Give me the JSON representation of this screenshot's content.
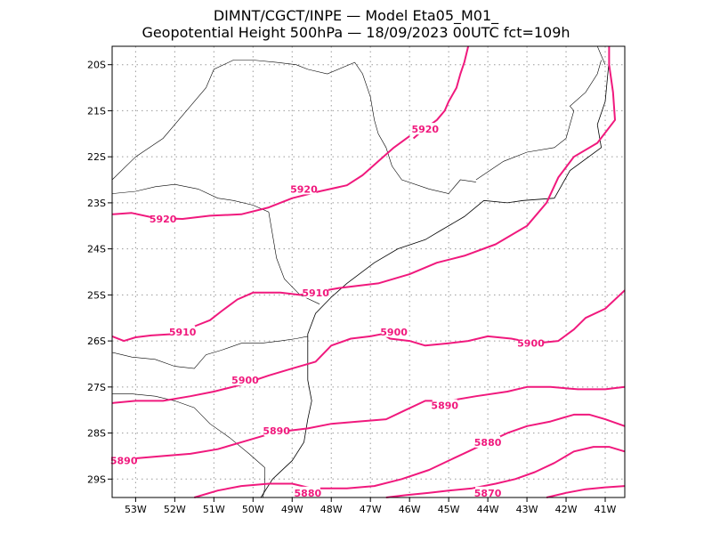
{
  "header": {
    "line1": "DIMNT/CGCT/INPE —  Model Eta05_M01_",
    "line2": "Geopotential Height 500hPa —  18/09/2023 00UTC fct=109h"
  },
  "map": {
    "lon_range": [
      -53.6,
      -40.5
    ],
    "lat_range": [
      -29.4,
      -19.6
    ],
    "lat_ticks": [
      {
        "value": -20,
        "label": "20S"
      },
      {
        "value": -21,
        "label": "21S"
      },
      {
        "value": -22,
        "label": "22S"
      },
      {
        "value": -23,
        "label": "23S"
      },
      {
        "value": -24,
        "label": "24S"
      },
      {
        "value": -25,
        "label": "25S"
      },
      {
        "value": -26,
        "label": "26S"
      },
      {
        "value": -27,
        "label": "27S"
      },
      {
        "value": -28,
        "label": "28S"
      },
      {
        "value": -29,
        "label": "29S"
      }
    ],
    "lon_ticks": [
      {
        "value": -53,
        "label": "53W"
      },
      {
        "value": -52,
        "label": "52W"
      },
      {
        "value": -51,
        "label": "51W"
      },
      {
        "value": -50,
        "label": "50W"
      },
      {
        "value": -49,
        "label": "49W"
      },
      {
        "value": -48,
        "label": "48W"
      },
      {
        "value": -47,
        "label": "47W"
      },
      {
        "value": -46,
        "label": "46W"
      },
      {
        "value": -45,
        "label": "45W"
      },
      {
        "value": -44,
        "label": "44W"
      },
      {
        "value": -43,
        "label": "43W"
      },
      {
        "value": -42,
        "label": "42W"
      },
      {
        "value": -41,
        "label": "41W"
      }
    ],
    "contour_color": "#f0197d",
    "contour_labels": [
      {
        "text": "5920",
        "lon": -45.6,
        "lat": -21.4
      },
      {
        "text": "5920",
        "lon": -48.7,
        "lat": -22.7
      },
      {
        "text": "5920",
        "lon": -52.3,
        "lat": -23.35
      },
      {
        "text": "5910",
        "lon": -48.4,
        "lat": -24.95
      },
      {
        "text": "5910",
        "lon": -51.8,
        "lat": -25.8
      },
      {
        "text": "5900",
        "lon": -46.4,
        "lat": -25.8
      },
      {
        "text": "5900",
        "lon": -42.9,
        "lat": -26.05
      },
      {
        "text": "5900",
        "lon": -50.2,
        "lat": -26.85
      },
      {
        "text": "5890",
        "lon": -45.1,
        "lat": -27.4
      },
      {
        "text": "5890",
        "lon": -49.4,
        "lat": -27.95
      },
      {
        "text": "5890",
        "lon": -53.3,
        "lat": -28.6
      },
      {
        "text": "5880",
        "lon": -44.0,
        "lat": -28.2
      },
      {
        "text": "5880",
        "lon": -48.6,
        "lat": -29.3
      },
      {
        "text": "5870",
        "lon": -44.0,
        "lat": -29.3
      }
    ],
    "contours": [
      [
        [
          -45.9,
          -21.6
        ],
        [
          -45.7,
          -21.45
        ],
        [
          -45.3,
          -21.2
        ],
        [
          -45.1,
          -21.0
        ],
        [
          -45.0,
          -20.8
        ],
        [
          -44.8,
          -20.5
        ],
        [
          -44.7,
          -20.2
        ],
        [
          -44.6,
          -19.95
        ],
        [
          -44.5,
          -19.6
        ]
      ],
      [
        [
          -53.6,
          -23.25
        ],
        [
          -53.1,
          -23.22
        ],
        [
          -52.5,
          -23.33
        ],
        [
          -51.8,
          -23.35
        ],
        [
          -51.1,
          -23.28
        ],
        [
          -50.3,
          -23.25
        ],
        [
          -49.6,
          -23.1
        ],
        [
          -49.0,
          -22.9
        ],
        [
          -48.3,
          -22.75
        ],
        [
          -47.6,
          -22.62
        ],
        [
          -47.2,
          -22.4
        ],
        [
          -46.8,
          -22.1
        ],
        [
          -46.4,
          -21.8
        ],
        [
          -46.0,
          -21.55
        ]
      ],
      [
        [
          -53.6,
          -25.9
        ],
        [
          -53.3,
          -26.0
        ],
        [
          -53.0,
          -25.92
        ],
        [
          -52.6,
          -25.88
        ],
        [
          -52.0,
          -25.85
        ],
        [
          -51.4,
          -25.65
        ],
        [
          -51.1,
          -25.55
        ],
        [
          -50.8,
          -25.35
        ],
        [
          -50.4,
          -25.1
        ],
        [
          -50.0,
          -24.95
        ],
        [
          -49.3,
          -24.95
        ],
        [
          -48.8,
          -25.0
        ],
        [
          -47.8,
          -24.85
        ],
        [
          -46.8,
          -24.75
        ],
        [
          -46.0,
          -24.55
        ],
        [
          -45.3,
          -24.3
        ],
        [
          -44.6,
          -24.15
        ],
        [
          -43.8,
          -23.9
        ],
        [
          -43.0,
          -23.5
        ],
        [
          -42.5,
          -23.0
        ],
        [
          -42.2,
          -22.45
        ],
        [
          -41.8,
          -22.0
        ],
        [
          -41.2,
          -21.7
        ],
        [
          -40.75,
          -21.2
        ],
        [
          -40.8,
          -20.6
        ],
        [
          -40.9,
          -20.0
        ],
        [
          -40.9,
          -19.6
        ]
      ],
      [
        [
          -53.6,
          -27.35
        ],
        [
          -53.0,
          -27.3
        ],
        [
          -52.3,
          -27.3
        ],
        [
          -51.6,
          -27.2
        ],
        [
          -51.0,
          -27.1
        ],
        [
          -50.3,
          -26.95
        ],
        [
          -49.6,
          -26.75
        ],
        [
          -49.0,
          -26.6
        ],
        [
          -48.4,
          -26.45
        ],
        [
          -48.0,
          -26.1
        ],
        [
          -47.5,
          -25.95
        ],
        [
          -47.0,
          -25.9
        ],
        [
          -46.7,
          -25.85
        ],
        [
          -46.5,
          -25.95
        ],
        [
          -46.0,
          -26.0
        ],
        [
          -45.6,
          -26.1
        ],
        [
          -45.0,
          -26.05
        ],
        [
          -44.5,
          -26.0
        ],
        [
          -44.0,
          -25.9
        ],
        [
          -43.4,
          -25.95
        ],
        [
          -42.8,
          -26.05
        ],
        [
          -42.2,
          -26.0
        ],
        [
          -41.8,
          -25.75
        ],
        [
          -41.5,
          -25.5
        ],
        [
          -41.0,
          -25.3
        ],
        [
          -40.5,
          -24.9
        ]
      ],
      [
        [
          -53.6,
          -28.6
        ],
        [
          -53.0,
          -28.55
        ],
        [
          -52.3,
          -28.5
        ],
        [
          -51.6,
          -28.45
        ],
        [
          -50.9,
          -28.35
        ],
        [
          -50.3,
          -28.2
        ],
        [
          -49.7,
          -28.05
        ],
        [
          -49.1,
          -27.95
        ],
        [
          -48.6,
          -27.9
        ],
        [
          -48.0,
          -27.8
        ],
        [
          -47.3,
          -27.75
        ],
        [
          -46.6,
          -27.7
        ],
        [
          -46.1,
          -27.5
        ],
        [
          -45.6,
          -27.3
        ],
        [
          -45.0,
          -27.3
        ],
        [
          -44.3,
          -27.2
        ],
        [
          -43.5,
          -27.1
        ],
        [
          -43.0,
          -27.0
        ],
        [
          -42.4,
          -27.0
        ],
        [
          -41.7,
          -27.05
        ],
        [
          -41.0,
          -27.05
        ],
        [
          -40.5,
          -27.0
        ]
      ],
      [
        [
          -51.5,
          -29.4
        ],
        [
          -50.9,
          -29.25
        ],
        [
          -50.3,
          -29.15
        ],
        [
          -49.6,
          -29.1
        ],
        [
          -49.0,
          -29.1
        ],
        [
          -48.5,
          -29.2
        ],
        [
          -47.6,
          -29.2
        ],
        [
          -46.9,
          -29.15
        ],
        [
          -46.2,
          -29.0
        ],
        [
          -45.5,
          -28.8
        ],
        [
          -45.0,
          -28.6
        ],
        [
          -44.5,
          -28.4
        ],
        [
          -44.0,
          -28.2
        ],
        [
          -43.5,
          -28.0
        ],
        [
          -43.0,
          -27.85
        ],
        [
          -42.4,
          -27.75
        ],
        [
          -41.8,
          -27.6
        ],
        [
          -41.4,
          -27.6
        ],
        [
          -41.0,
          -27.7
        ],
        [
          -40.5,
          -27.85
        ]
      ],
      [
        [
          -46.6,
          -29.4
        ],
        [
          -46.1,
          -29.35
        ],
        [
          -45.5,
          -29.3
        ],
        [
          -45.0,
          -29.25
        ],
        [
          -44.4,
          -29.2
        ],
        [
          -43.8,
          -29.1
        ],
        [
          -43.3,
          -29.0
        ],
        [
          -42.8,
          -28.85
        ],
        [
          -42.3,
          -28.65
        ],
        [
          -41.8,
          -28.4
        ],
        [
          -41.3,
          -28.3
        ],
        [
          -40.9,
          -28.3
        ],
        [
          -40.5,
          -28.4
        ]
      ],
      [
        [
          -42.5,
          -29.4
        ],
        [
          -42.0,
          -29.3
        ],
        [
          -41.5,
          -29.22
        ],
        [
          -41.0,
          -29.18
        ],
        [
          -40.5,
          -29.15
        ]
      ]
    ],
    "coast": [
      [
        -40.9,
        -19.9
      ],
      [
        -41.0,
        -20.8
      ],
      [
        -41.2,
        -21.3
      ],
      [
        -41.1,
        -21.8
      ],
      [
        -41.9,
        -22.3
      ],
      [
        -42.3,
        -22.9
      ],
      [
        -43.1,
        -22.95
      ],
      [
        -43.5,
        -23.0
      ],
      [
        -44.1,
        -22.95
      ],
      [
        -44.6,
        -23.3
      ],
      [
        -45.2,
        -23.6
      ],
      [
        -45.6,
        -23.8
      ],
      [
        -46.3,
        -24.0
      ],
      [
        -46.9,
        -24.3
      ],
      [
        -47.6,
        -24.75
      ],
      [
        -48.0,
        -25.05
      ],
      [
        -48.4,
        -25.4
      ],
      [
        -48.6,
        -25.85
      ],
      [
        -48.6,
        -26.4
      ],
      [
        -48.6,
        -26.85
      ],
      [
        -48.5,
        -27.3
      ],
      [
        -48.6,
        -27.7
      ],
      [
        -48.7,
        -28.2
      ],
      [
        -49.0,
        -28.6
      ],
      [
        -49.5,
        -29.0
      ],
      [
        -49.8,
        -29.4
      ]
    ],
    "borders": [
      [
        [
          -53.6,
          -22.5
        ],
        [
          -53.0,
          -22.0
        ],
        [
          -52.3,
          -21.6
        ],
        [
          -51.6,
          -20.9
        ],
        [
          -51.2,
          -20.5
        ],
        [
          -51.0,
          -20.1
        ],
        [
          -50.5,
          -19.9
        ],
        [
          -50.0,
          -19.9
        ],
        [
          -49.4,
          -19.95
        ],
        [
          -48.9,
          -20.0
        ],
        [
          -48.6,
          -20.1
        ],
        [
          -48.1,
          -20.2
        ],
        [
          -47.4,
          -19.95
        ],
        [
          -47.2,
          -20.2
        ],
        [
          -47.0,
          -20.7
        ],
        [
          -46.9,
          -21.2
        ],
        [
          -46.8,
          -21.5
        ],
        [
          -46.6,
          -21.8
        ],
        [
          -46.45,
          -22.2
        ],
        [
          -46.2,
          -22.5
        ],
        [
          -45.5,
          -22.7
        ],
        [
          -45.0,
          -22.8
        ],
        [
          -44.7,
          -22.5
        ],
        [
          -44.3,
          -22.55
        ]
      ],
      [
        [
          -53.6,
          -22.8
        ],
        [
          -53.0,
          -22.75
        ],
        [
          -52.5,
          -22.65
        ],
        [
          -52.0,
          -22.6
        ],
        [
          -51.4,
          -22.7
        ],
        [
          -50.9,
          -22.9
        ],
        [
          -50.5,
          -22.95
        ],
        [
          -50.0,
          -23.05
        ],
        [
          -49.6,
          -23.2
        ],
        [
          -49.5,
          -23.7
        ],
        [
          -49.4,
          -24.2
        ],
        [
          -49.2,
          -24.65
        ],
        [
          -48.8,
          -25.0
        ],
        [
          -48.3,
          -25.2
        ]
      ],
      [
        [
          -53.6,
          -26.25
        ],
        [
          -53.1,
          -26.35
        ],
        [
          -52.5,
          -26.4
        ],
        [
          -52.0,
          -26.55
        ],
        [
          -51.5,
          -26.6
        ],
        [
          -51.2,
          -26.3
        ],
        [
          -50.8,
          -26.2
        ],
        [
          -50.3,
          -26.05
        ],
        [
          -49.8,
          -26.05
        ],
        [
          -49.3,
          -26.0
        ],
        [
          -48.9,
          -25.95
        ],
        [
          -48.6,
          -25.9
        ]
      ],
      [
        [
          -53.6,
          -27.15
        ],
        [
          -53.1,
          -27.15
        ],
        [
          -52.5,
          -27.2
        ],
        [
          -52.0,
          -27.3
        ],
        [
          -51.5,
          -27.45
        ],
        [
          -51.1,
          -27.8
        ],
        [
          -50.6,
          -28.1
        ],
        [
          -50.1,
          -28.45
        ],
        [
          -49.7,
          -28.75
        ],
        [
          -49.7,
          -29.2
        ],
        [
          -49.75,
          -29.4
        ]
      ],
      [
        [
          -44.3,
          -22.5
        ],
        [
          -43.6,
          -22.1
        ],
        [
          -43.0,
          -21.9
        ],
        [
          -42.3,
          -21.8
        ],
        [
          -42.0,
          -21.6
        ],
        [
          -41.8,
          -21.0
        ],
        [
          -41.9,
          -20.9
        ],
        [
          -41.5,
          -20.6
        ],
        [
          -41.2,
          -20.2
        ],
        [
          -41.1,
          -19.9
        ]
      ],
      [
        [
          -41.0,
          -20.0
        ],
        [
          -41.2,
          -19.6
        ]
      ]
    ]
  }
}
